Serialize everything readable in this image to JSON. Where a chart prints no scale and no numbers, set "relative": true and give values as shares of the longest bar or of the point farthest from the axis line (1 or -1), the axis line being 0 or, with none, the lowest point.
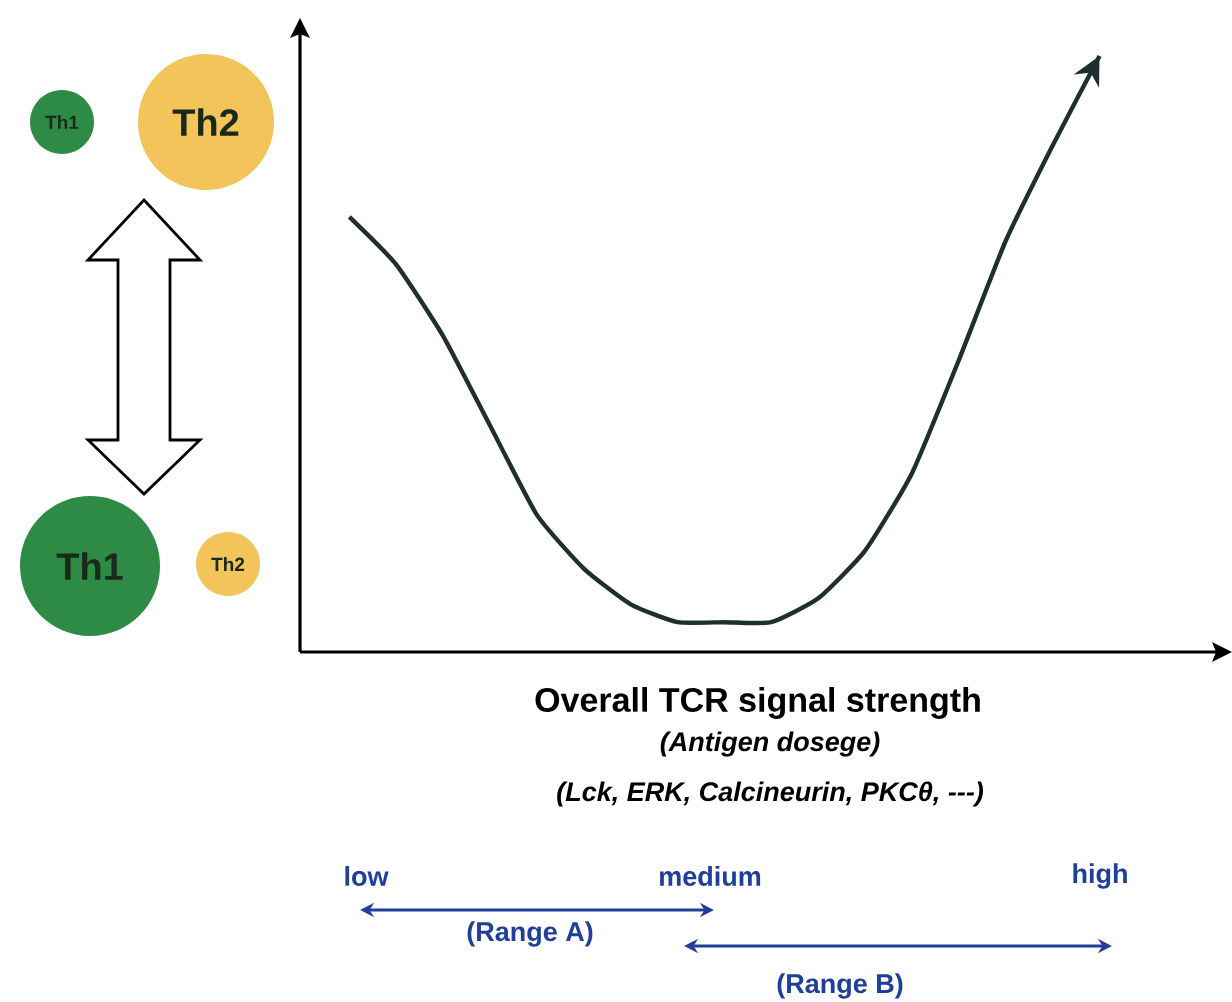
{
  "chart_data": {
    "type": "line",
    "relative": true,
    "xlabel": "Overall TCR signal strength",
    "categories": [
      null,
      null,
      null,
      null,
      null,
      null,
      null,
      null,
      null,
      null,
      null,
      null,
      null,
      null,
      null,
      null,
      null
    ],
    "series": [
      {
        "color": "#1f2f2f",
        "values": [
          0.73,
          0.65,
          0.53,
          0.38,
          0.23,
          0.14,
          0.08,
          0.05,
          0.05,
          0.05,
          0.09,
          0.17,
          0.3,
          0.49,
          0.69,
          0.85,
          1
        ]
      }
    ],
    "annotations": [
      "(Antigen dosege)",
      "(Lck, ERK, Calcineurin, PKCθ, ---)",
      "low",
      "medium",
      "high",
      "(Range A)",
      "(Range B)",
      "Th1",
      "Th2",
      "Th1",
      "Th2"
    ]
  }
}
